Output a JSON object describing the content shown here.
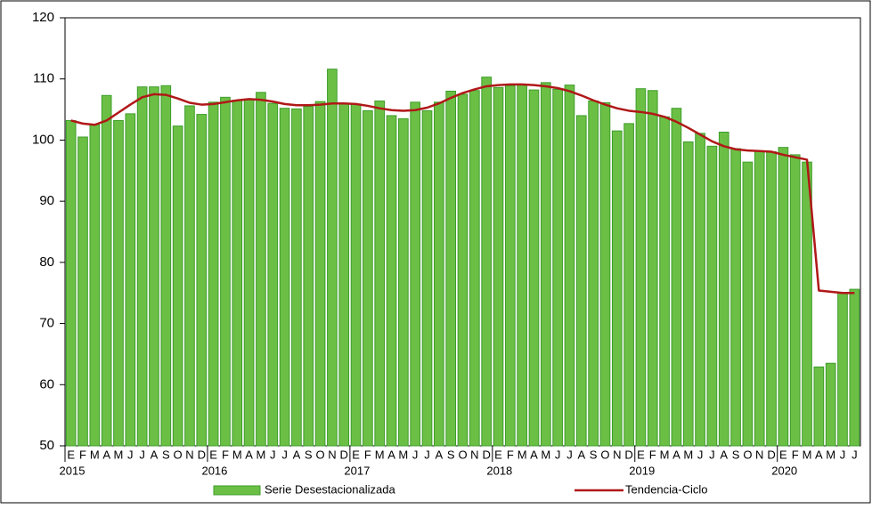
{
  "chart_data": {
    "type": "bar",
    "categories": [
      "E",
      "F",
      "M",
      "A",
      "M",
      "J",
      "J",
      "A",
      "S",
      "O",
      "N",
      "D",
      "E",
      "F",
      "M",
      "A",
      "M",
      "J",
      "J",
      "A",
      "S",
      "O",
      "N",
      "D",
      "E",
      "F",
      "M",
      "A",
      "M",
      "J",
      "J",
      "A",
      "S",
      "O",
      "N",
      "D",
      "E",
      "F",
      "M",
      "A",
      "M",
      "J",
      "J",
      "A",
      "S",
      "O",
      "N",
      "D",
      "E",
      "F",
      "M",
      "A",
      "M",
      "J",
      "J",
      "A",
      "S",
      "O",
      "N",
      "D",
      "E",
      "F",
      "M",
      "A",
      "M",
      "J",
      "J"
    ],
    "years": [
      "2015",
      "2016",
      "2017",
      "2018",
      "2019",
      "2020"
    ],
    "series": [
      {
        "name": "Serie Desestacionalizada",
        "type": "bar",
        "color": "#6cbf45",
        "edge": "#3d9e2a",
        "values": [
          103.2,
          100.5,
          102.5,
          107.3,
          103.2,
          104.3,
          108.7,
          108.7,
          108.9,
          102.3,
          105.6,
          104.2,
          106.2,
          107.0,
          106.5,
          106.6,
          107.8,
          106.0,
          105.2,
          105.1,
          105.5,
          106.3,
          111.6,
          106.0,
          105.9,
          104.8,
          106.4,
          104.0,
          103.5,
          106.2,
          104.8,
          106.2,
          108.0,
          107.5,
          108.1,
          110.3,
          108.6,
          108.9,
          109.0,
          108.2,
          109.4,
          108.3,
          109.0,
          104.0,
          106.4,
          106.1,
          101.5,
          102.7,
          108.4,
          108.1,
          103.8,
          105.2,
          99.7,
          101.1,
          99.0,
          101.3,
          98.6,
          96.4,
          98.2,
          98.1,
          98.8,
          97.6,
          96.4,
          62.9,
          63.5,
          75.0,
          75.6
        ]
      },
      {
        "name": "Tendencia-Ciclo",
        "type": "line",
        "color": "#b01818",
        "values": [
          103.2,
          102.7,
          102.5,
          103.2,
          104.5,
          105.8,
          107.0,
          107.5,
          107.4,
          106.8,
          106.1,
          105.8,
          105.9,
          106.2,
          106.5,
          106.7,
          106.6,
          106.3,
          105.9,
          105.7,
          105.7,
          105.8,
          106.0,
          106.0,
          105.9,
          105.6,
          105.2,
          104.9,
          104.8,
          104.9,
          105.3,
          106.0,
          106.9,
          107.7,
          108.3,
          108.8,
          109.0,
          109.1,
          109.1,
          109.0,
          108.8,
          108.5,
          108.0,
          107.3,
          106.5,
          105.8,
          105.2,
          104.8,
          104.6,
          104.3,
          103.8,
          103.0,
          102.0,
          100.9,
          99.8,
          99.0,
          98.5,
          98.3,
          98.2,
          98.1,
          97.6,
          97.2,
          96.8,
          75.4,
          75.2,
          75.0,
          75.0
        ]
      }
    ],
    "ylim": [
      50,
      120
    ],
    "yticks": [
      50,
      60,
      70,
      80,
      90,
      100,
      110,
      120
    ],
    "grid": false
  }
}
